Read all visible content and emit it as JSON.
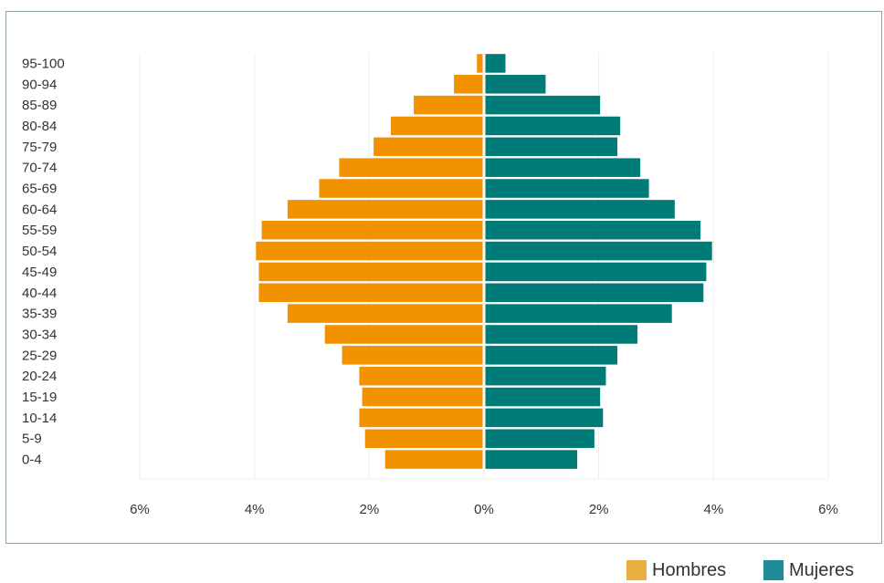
{
  "chart_data": {
    "type": "bar",
    "orientation": "horizontal-pyramid",
    "categories": [
      "95-100",
      "90-94",
      "85-89",
      "80-84",
      "75-79",
      "70-74",
      "65-69",
      "60-64",
      "55-59",
      "50-54",
      "45-49",
      "40-44",
      "35-39",
      "30-34",
      "25-29",
      "20-24",
      "15-19",
      "10-14",
      "5-9",
      "0-4"
    ],
    "series": [
      {
        "name": "Hombres",
        "color": "#f39200",
        "legend_color": "#e8b040",
        "values": [
          0.1,
          0.5,
          1.2,
          1.6,
          1.9,
          2.5,
          2.85,
          3.4,
          3.85,
          3.95,
          3.9,
          3.9,
          3.4,
          2.75,
          2.45,
          2.15,
          2.1,
          2.15,
          2.05,
          1.7
        ]
      },
      {
        "name": "Mujeres",
        "color": "#007b77",
        "legend_color": "#1e8c96",
        "values": [
          0.35,
          1.05,
          2.0,
          2.35,
          2.3,
          2.7,
          2.85,
          3.3,
          3.75,
          3.95,
          3.85,
          3.8,
          3.25,
          2.65,
          2.3,
          2.1,
          2.0,
          2.05,
          1.9,
          1.6
        ]
      }
    ],
    "x_ticks": [
      "6%",
      "4%",
      "2%",
      "0%",
      "2%",
      "4%",
      "6%"
    ],
    "xlim": [
      -6,
      6
    ],
    "xlabel": "",
    "ylabel": "",
    "grid": true,
    "legend_position": "bottom-right"
  },
  "legend": {
    "hombres_label": "Hombres",
    "mujeres_label": "Mujeres"
  }
}
